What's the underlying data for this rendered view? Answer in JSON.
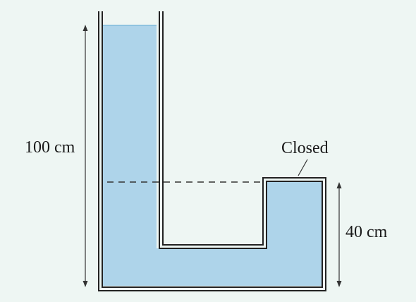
{
  "labels": {
    "height_left": "100 cm",
    "closed": "Closed",
    "height_right": "40 cm"
  },
  "colors": {
    "background": "#eef6f3",
    "liquid": "#aed4ea",
    "wall": "#222222",
    "wall_gap": "#ffffff",
    "dash": "#333333"
  }
}
